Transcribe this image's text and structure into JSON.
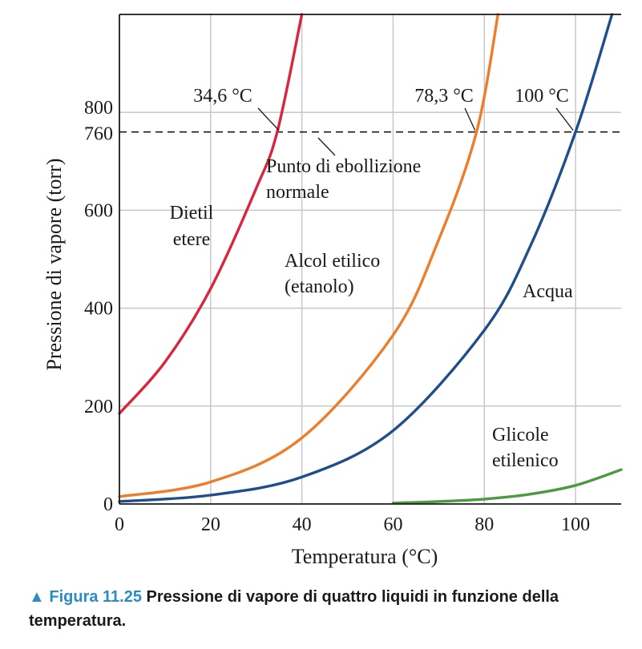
{
  "chart_data": {
    "type": "line",
    "xlabel": "Temperatura (°C)",
    "ylabel": "Pressione di vapore (torr)",
    "xlim": [
      0,
      110
    ],
    "ylim": [
      0,
      1000
    ],
    "xticks": [
      "0",
      "20",
      "40",
      "60",
      "80",
      "100"
    ],
    "yticks": [
      "0",
      "200",
      "400",
      "600",
      "760",
      "800"
    ],
    "grid": true,
    "reference_line": {
      "y": 760
    },
    "series": [
      {
        "name": "Dietil etere",
        "color": "#d7263d",
        "x": [
          0,
          10,
          20,
          30,
          34.6,
          40
        ],
        "y": [
          185,
          290,
          440,
          645,
          760,
          1000
        ]
      },
      {
        "name": "Alcol etilico (etanolo)",
        "color": "#ee7d2a",
        "x": [
          0,
          20,
          40,
          60,
          70,
          78.3,
          83
        ],
        "y": [
          15,
          45,
          135,
          345,
          540,
          760,
          1000
        ]
      },
      {
        "name": "Acqua",
        "color": "#1f4f8b",
        "x": [
          0,
          20,
          40,
          60,
          80,
          90,
          100,
          108
        ],
        "y": [
          5,
          18,
          55,
          150,
          355,
          525,
          760,
          1000
        ]
      },
      {
        "name": "Glicole etilenico",
        "color": "#4c9a3f",
        "x": [
          60,
          70,
          80,
          90,
          100,
          110
        ],
        "y": [
          2,
          5,
          10,
          20,
          38,
          70
        ]
      }
    ],
    "annotations": [
      {
        "text": "34,6 °C",
        "x": 34.6,
        "y": 760
      },
      {
        "text": "78,3 °C",
        "x": 78.3,
        "y": 760
      },
      {
        "text": "100 °C",
        "x": 100,
        "y": 760
      },
      {
        "text_lines": [
          "Punto di ebollizione",
          "normale"
        ]
      }
    ],
    "series_labels": [
      {
        "lines": [
          "Dietil",
          "etere"
        ]
      },
      {
        "lines": [
          "Alcol etilico",
          "(etanolo)"
        ]
      },
      {
        "lines": [
          "Acqua"
        ]
      },
      {
        "lines": [
          "Glicole",
          "etilenico"
        ]
      }
    ]
  },
  "caption": {
    "marker": "▲",
    "figure_label": "Figura 11.25",
    "text": "Pressione di vapore di quattro liquidi in funzione della temperatura."
  }
}
